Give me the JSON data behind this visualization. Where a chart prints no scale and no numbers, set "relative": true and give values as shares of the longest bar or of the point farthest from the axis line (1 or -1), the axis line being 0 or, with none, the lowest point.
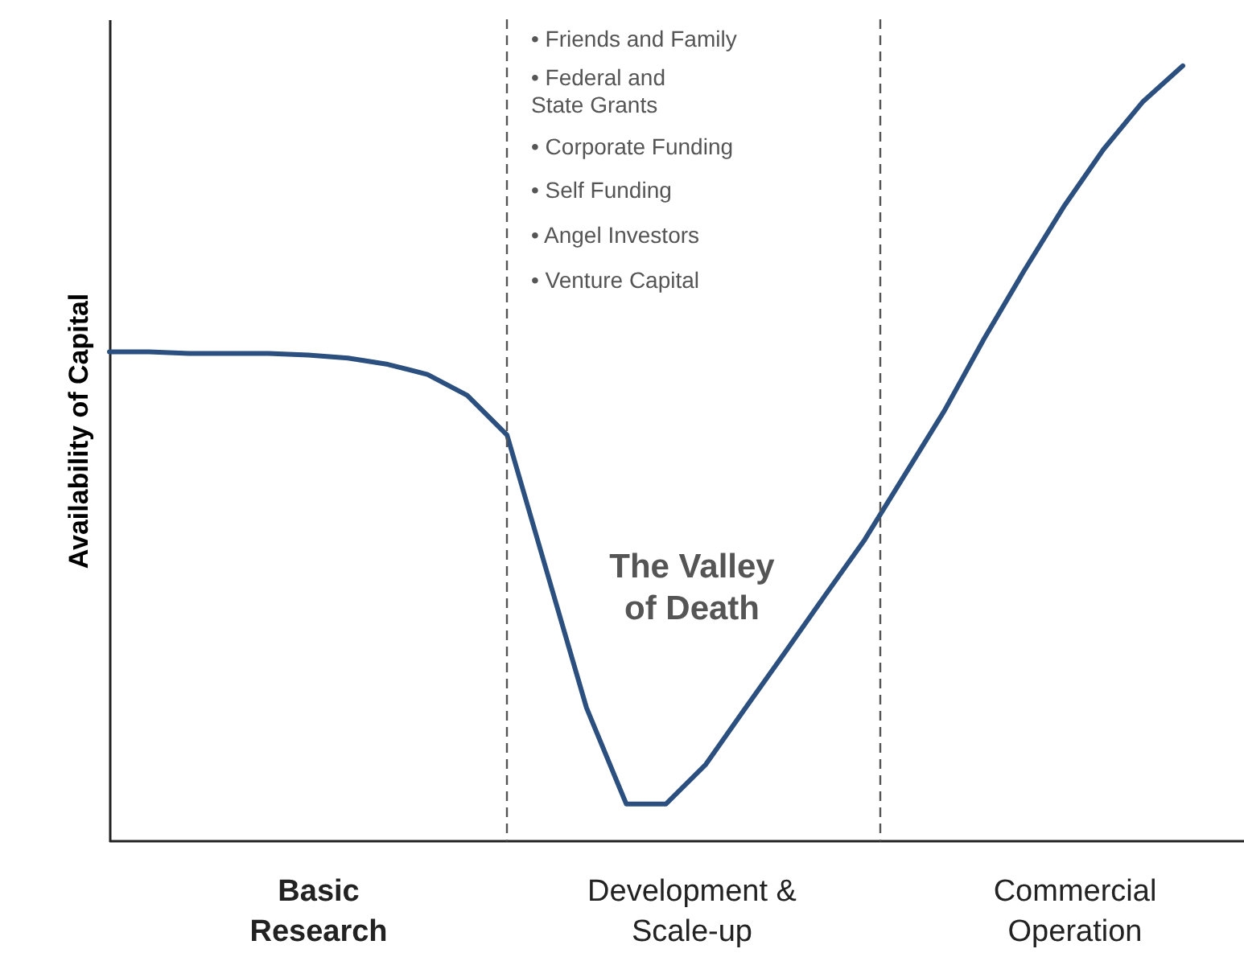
{
  "chart_data": {
    "type": "line",
    "relative": true,
    "ylabel": "Availability of Capital",
    "categories": [
      null,
      null,
      null,
      null,
      null,
      null,
      null,
      null,
      null,
      null,
      null,
      null,
      null,
      null,
      null,
      null,
      null,
      null,
      null,
      null,
      null,
      null,
      null,
      null,
      null,
      null,
      null,
      null
    ],
    "series": [
      {
        "color": "#2b4f7e",
        "values": [
          0.631,
          0.631,
          0.629,
          0.629,
          0.629,
          0.627,
          0.623,
          0.615,
          0.602,
          0.575,
          0.524,
          0.348,
          0.172,
          0.048,
          0.048,
          0.099,
          0.172,
          0.244,
          0.317,
          0.389,
          0.472,
          0.555,
          0.648,
          0.735,
          0.818,
          0.892,
          0.954,
          1.0
        ]
      }
    ],
    "marker": "none",
    "line_style": "solid",
    "annotations": [
      "• Friends and Family",
      "• Federal and\nState Grants",
      "• Corporate Funding",
      "• Self Funding",
      "• Angel Investors",
      "• Venture Capital",
      "The Valley\nof Death",
      "Basic\nResearch",
      "Development &\nScale-up",
      "Commercial\nOperation"
    ]
  }
}
